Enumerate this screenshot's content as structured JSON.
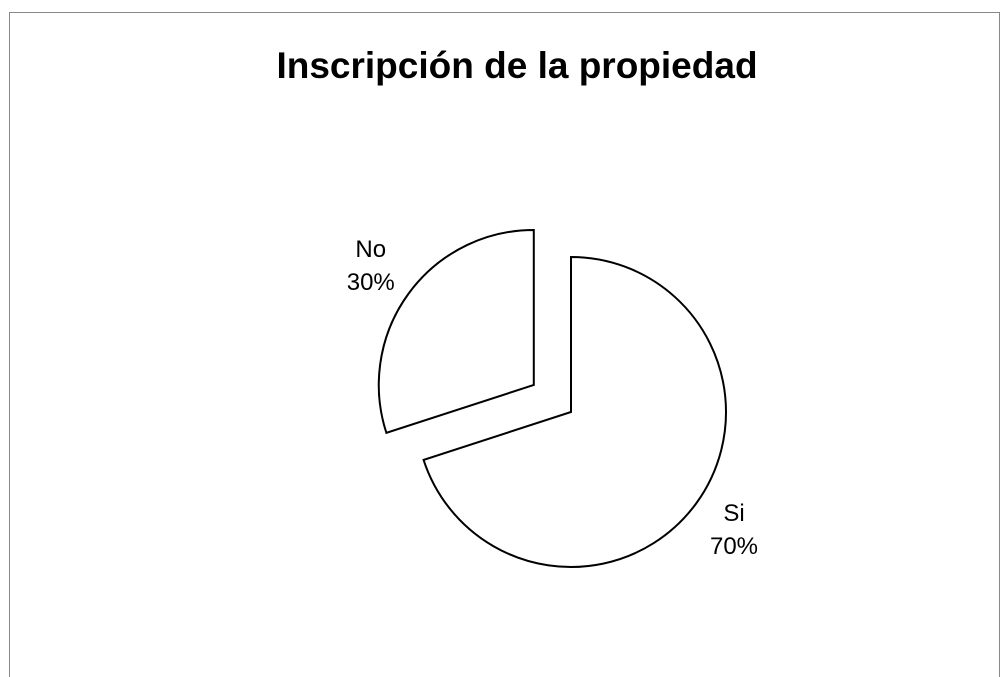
{
  "chart_data": {
    "type": "pie",
    "title": "Inscripción de la propiedad",
    "categories": [
      "Si",
      "No"
    ],
    "values": [
      70,
      30
    ],
    "value_labels": [
      "70%",
      "30%"
    ],
    "colors": [
      "#ffffff",
      "#ffffff"
    ],
    "explode": [
      false,
      true
    ]
  }
}
